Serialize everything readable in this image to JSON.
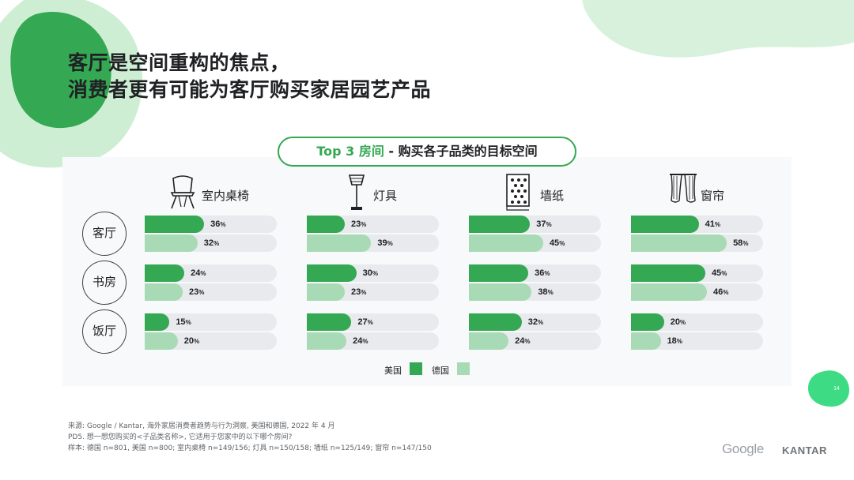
{
  "slide": {
    "title_line1": "客厅是空间重构的焦点，",
    "title_line2": "消费者更有可能为客厅购买家居园艺产品",
    "subtitle_accent": "Top 3 房间",
    "subtitle_rest": " - 购买各子品类的目标空间",
    "page_number": "14"
  },
  "colors": {
    "us": "#34a853",
    "de": "#a8dab5",
    "bar_background": "#e8eaed",
    "blob_light": "#cdeed3",
    "blob_dark": "#34a853"
  },
  "chart_data": {
    "type": "bar",
    "orientation": "horizontal",
    "unit": "%",
    "xlim": [
      0,
      100
    ],
    "panels": [
      {
        "category": "室内桌椅",
        "icon": "chair-icon"
      },
      {
        "category": "灯具",
        "icon": "lamp-icon"
      },
      {
        "category": "墙纸",
        "icon": "wallpaper-icon"
      },
      {
        "category": "窗帘",
        "icon": "curtain-icon"
      }
    ],
    "rooms": [
      "客厅",
      "书房",
      "饭厅"
    ],
    "series": [
      {
        "name": "美国",
        "values": [
          [
            36,
            24,
            15
          ],
          [
            23,
            30,
            27
          ],
          [
            37,
            36,
            32
          ],
          [
            41,
            45,
            20
          ]
        ]
      },
      {
        "name": "德国",
        "values": [
          [
            32,
            23,
            20
          ],
          [
            39,
            23,
            24
          ],
          [
            45,
            38,
            24
          ],
          [
            58,
            46,
            18
          ]
        ]
      }
    ],
    "legend": {
      "position": "bottom-center",
      "entries": [
        "美国",
        "德国"
      ]
    }
  },
  "footnote": {
    "line1": "来源: Google / Kantar, 海外家居消费者趋势与行为洞察, 美国和德国, 2022 年 4 月",
    "line2": "PD5. 想一想您购买的<子品类名称>, 它适用于您家中的以下哪个房间?",
    "line3": "样本: 德国 n=801, 美国 n=800; 室内桌椅 n=149/156; 灯具 n=150/158; 墙纸 n=125/149; 窗帘 n=147/150"
  },
  "logos": {
    "google": "Google",
    "kantar": "KANTAR"
  }
}
